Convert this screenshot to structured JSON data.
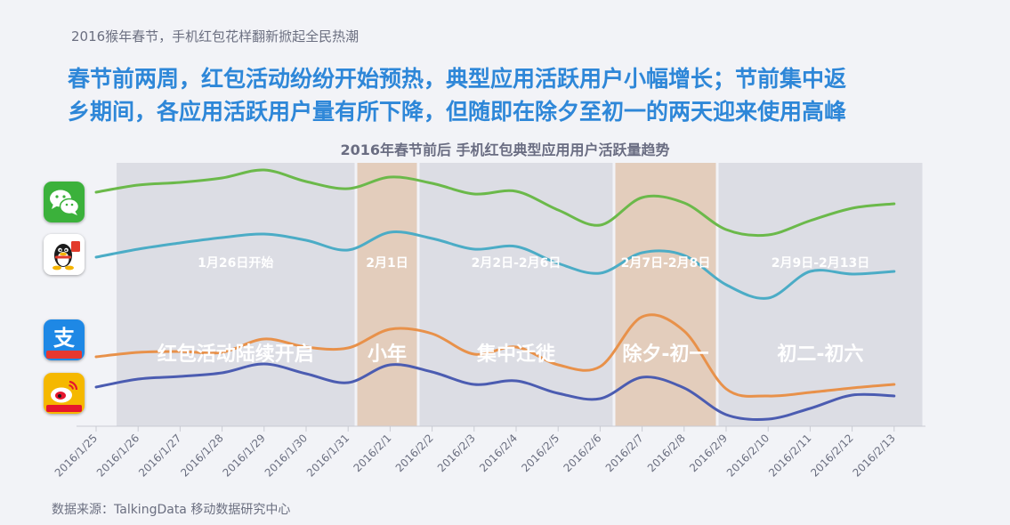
{
  "header": {
    "kicker": "2016猴年春节，手机红包花样翻新掀起全民热潮",
    "headline_line1": "春节前两周，红包活动纷纷开始预热，典型应用活跃用户小幅增长；节前集中返",
    "headline_line2": "乡期间，各应用活跃用户量有所下降，但随即在除夕至初一的两天迎来使用高峰"
  },
  "source": "数据来源：TalkingData 移动数据研究中心",
  "app_icons": [
    {
      "name": "wechat-icon",
      "color": "#3bb13b"
    },
    {
      "name": "qq-icon",
      "color": "#ffffff"
    },
    {
      "name": "alipay-icon",
      "color": "#1e88e5"
    },
    {
      "name": "weibo-icon",
      "color": "#f5b800"
    }
  ],
  "chart_data": {
    "type": "line",
    "title": "2016年春节前后 手机红包典型应用用户活跃量趋势",
    "categories": [
      "2016/1/25",
      "2016/1/26",
      "2016/1/27",
      "2016/1/28",
      "2016/1/29",
      "2016/1/30",
      "2016/1/31",
      "2016/2/1",
      "2016/2/2",
      "2016/2/3",
      "2016/2/4",
      "2016/2/5",
      "2016/2/6",
      "2016/2/7",
      "2016/2/8",
      "2016/2/9",
      "2016/2/10",
      "2016/2/11",
      "2016/2/12",
      "2016/2/13"
    ],
    "y_axis_shown": false,
    "series": [
      {
        "app": "微信",
        "color": "#6bb94a",
        "values": [
          216,
          208,
          205,
          200,
          191,
          204,
          212,
          199,
          206,
          218,
          215,
          236,
          253,
          222,
          228,
          258,
          264,
          248,
          234,
          229
        ]
      },
      {
        "app": "QQ",
        "color": "#4bacc6",
        "values": [
          289,
          280,
          273,
          267,
          263,
          270,
          281,
          261,
          268,
          280,
          277,
          296,
          307,
          284,
          287,
          320,
          335,
          305,
          308,
          305
        ]
      },
      {
        "app": "支付宝",
        "color": "#e8914a",
        "values": [
          401,
          396,
          395,
          396,
          381,
          390,
          391,
          370,
          375,
          398,
          390,
          410,
          412,
          356,
          372,
          437,
          445,
          441,
          436,
          432
        ]
      },
      {
        "app": "新浪微博",
        "color": "#4b5cb1",
        "values": [
          435,
          426,
          423,
          419,
          409,
          420,
          430,
          410,
          418,
          432,
          428,
          442,
          448,
          424,
          436,
          466,
          471,
          459,
          444,
          445
        ]
      }
    ],
    "periods": [
      {
        "start": "2016/1/25",
        "end": "2016/1/31",
        "date_label": "1月26日开始",
        "event_label": "红包活动陆续开启",
        "fill": "#dcdde4"
      },
      {
        "start": "2016/1/31",
        "end": "2016/2/2",
        "date_label": "2月1日",
        "event_label": "小年",
        "fill": "#e3cdbc"
      },
      {
        "start": "2016/2/2",
        "end": "2016/2/7",
        "date_label": "2月2日-2月6日",
        "event_label": "集中迁徙",
        "fill": "#dcdde4"
      },
      {
        "start": "2016/2/7",
        "end": "2016/2/9",
        "date_label": "2月7日-2月8日",
        "event_label": "除夕-初一",
        "fill": "#e3cdbc"
      },
      {
        "start": "2016/2/9",
        "end": "2016/2/13",
        "date_label": "2月9日-2月13日",
        "event_label": "初二-初六",
        "fill": "#dcdde4"
      }
    ],
    "line_colors": {
      "axis": "#c9cbd3",
      "tick_label": "#6b6f80"
    }
  }
}
